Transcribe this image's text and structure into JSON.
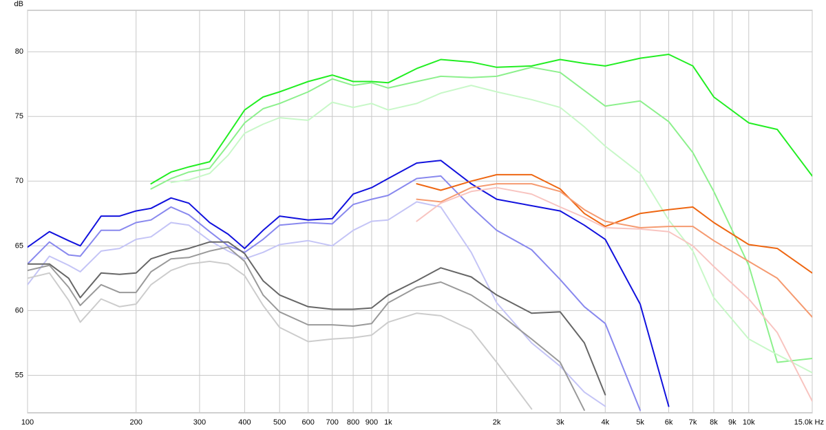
{
  "chart_data": {
    "type": "line",
    "y_label": "dB",
    "xscale": "log",
    "grid": true,
    "xlim": [
      100,
      15000
    ],
    "ylim": [
      52.1,
      83.2
    ],
    "xticks": [
      100,
      200,
      300,
      400,
      500,
      600,
      700,
      800,
      900,
      {
        "value": 1000,
        "label": "1k"
      },
      {
        "value": 2000,
        "label": "2k"
      },
      {
        "value": 3000,
        "label": "3k"
      },
      {
        "value": 4000,
        "label": "4k"
      },
      {
        "value": 5000,
        "label": "5k"
      },
      {
        "value": 6000,
        "label": "6k"
      },
      {
        "value": 7000,
        "label": "7k"
      },
      {
        "value": 8000,
        "label": "8k"
      },
      {
        "value": 9000,
        "label": "9k"
      },
      {
        "value": 10000,
        "label": "10k"
      },
      {
        "value": 15000,
        "label": "15.0k Hz"
      }
    ],
    "yticks": [
      55,
      60,
      65,
      70,
      75,
      80
    ],
    "x": [
      100,
      115,
      130,
      140,
      160,
      180,
      200,
      220,
      250,
      280,
      320,
      360,
      400,
      450,
      500,
      600,
      700,
      800,
      900,
      1000,
      1200,
      1400,
      1700,
      2000,
      2500,
      3000,
      3500,
      4000,
      5000,
      6000,
      7000,
      8000,
      10000,
      12000,
      15000
    ],
    "series": [
      {
        "color": "#22ee22",
        "values": [
          null,
          null,
          null,
          null,
          null,
          null,
          null,
          69.8,
          70.7,
          71.1,
          71.5,
          73.6,
          75.5,
          76.5,
          76.9,
          77.7,
          78.2,
          77.7,
          77.7,
          77.6,
          78.7,
          79.4,
          79.2,
          78.8,
          78.9,
          79.4,
          79.1,
          78.9,
          79.5,
          79.8,
          78.9,
          76.5,
          74.5,
          74.0,
          70.4
        ]
      },
      {
        "color": "#8cf08c",
        "values": [
          null,
          null,
          null,
          null,
          null,
          null,
          null,
          69.4,
          70.2,
          70.7,
          71.0,
          72.8,
          74.5,
          75.6,
          76.0,
          76.9,
          77.9,
          77.4,
          77.6,
          77.2,
          77.7,
          78.1,
          78.0,
          78.1,
          78.8,
          78.4,
          77.0,
          75.8,
          76.2,
          74.6,
          72.2,
          69.2,
          63.5,
          56.0,
          56.3
        ]
      },
      {
        "color": "#c8f8c8",
        "values": [
          null,
          null,
          null,
          null,
          null,
          null,
          null,
          null,
          69.9,
          70.1,
          70.6,
          72.0,
          73.7,
          74.4,
          74.9,
          74.7,
          76.1,
          75.7,
          76.0,
          75.5,
          76.0,
          76.8,
          77.4,
          76.9,
          76.3,
          75.7,
          74.2,
          72.7,
          70.6,
          67.0,
          64.6,
          61.0,
          57.8,
          56.6,
          55.2
        ]
      },
      {
        "color": "#1111dd",
        "values": [
          64.9,
          66.1,
          65.4,
          65.0,
          67.3,
          67.3,
          67.7,
          67.9,
          68.7,
          68.3,
          66.8,
          65.9,
          64.8,
          66.2,
          67.3,
          67.0,
          67.1,
          69.0,
          69.5,
          70.2,
          71.4,
          71.6,
          69.8,
          68.6,
          68.1,
          67.7,
          66.6,
          65.5,
          60.5,
          52.6,
          null,
          null,
          null,
          null,
          null
        ]
      },
      {
        "color": "#8888ee",
        "values": [
          63.6,
          65.3,
          64.3,
          64.2,
          66.2,
          66.2,
          66.8,
          67.0,
          68.0,
          67.4,
          66.1,
          65.0,
          64.5,
          65.5,
          66.6,
          66.8,
          66.7,
          68.2,
          68.6,
          68.9,
          70.2,
          70.4,
          68.0,
          66.2,
          64.7,
          62.4,
          60.3,
          59.0,
          52.3,
          null,
          null,
          null,
          null,
          null,
          null
        ]
      },
      {
        "color": "#c4c4f6",
        "values": [
          62.0,
          64.2,
          63.5,
          63.0,
          64.6,
          64.8,
          65.5,
          65.7,
          66.8,
          66.6,
          65.4,
          64.6,
          64.0,
          64.5,
          65.1,
          65.4,
          65.0,
          66.2,
          66.9,
          67.0,
          68.4,
          68.0,
          64.5,
          60.6,
          57.5,
          55.7,
          53.7,
          52.6,
          null,
          null,
          null,
          null,
          null,
          null,
          null
        ]
      },
      {
        "color": "#666666",
        "values": [
          63.6,
          63.6,
          62.5,
          61.0,
          62.9,
          62.8,
          62.9,
          64.0,
          64.5,
          64.8,
          65.3,
          65.3,
          64.4,
          62.3,
          61.2,
          60.3,
          60.1,
          60.1,
          60.2,
          61.2,
          62.3,
          63.3,
          62.6,
          61.2,
          59.8,
          59.9,
          57.5,
          53.5,
          null,
          null,
          null,
          null,
          null,
          null,
          null
        ]
      },
      {
        "color": "#999999",
        "values": [
          63.1,
          63.5,
          61.8,
          60.4,
          62.0,
          61.4,
          61.4,
          63.0,
          64.0,
          64.1,
          64.6,
          64.9,
          63.8,
          61.2,
          59.9,
          58.9,
          58.9,
          58.8,
          59.0,
          60.6,
          61.8,
          62.2,
          61.2,
          59.9,
          57.8,
          56.0,
          52.3,
          null,
          null,
          null,
          null,
          null,
          null,
          null,
          null
        ]
      },
      {
        "color": "#cccccc",
        "values": [
          62.5,
          62.9,
          60.8,
          59.1,
          60.9,
          60.3,
          60.5,
          62.0,
          63.1,
          63.6,
          63.8,
          63.6,
          62.7,
          60.4,
          58.7,
          57.6,
          57.8,
          57.9,
          58.1,
          59.1,
          59.8,
          59.6,
          58.5,
          56.0,
          52.4,
          null,
          null,
          null,
          null,
          null,
          null,
          null,
          null,
          null,
          null
        ]
      },
      {
        "color": "#ee6611",
        "values": [
          null,
          null,
          null,
          null,
          null,
          null,
          null,
          null,
          null,
          null,
          null,
          null,
          null,
          null,
          null,
          null,
          null,
          null,
          null,
          null,
          69.8,
          69.3,
          70.0,
          70.5,
          70.5,
          69.4,
          67.5,
          66.5,
          67.5,
          67.8,
          68.0,
          66.8,
          65.1,
          64.8,
          62.9
        ]
      },
      {
        "color": "#f59a70",
        "values": [
          null,
          null,
          null,
          null,
          null,
          null,
          null,
          null,
          null,
          null,
          null,
          null,
          null,
          null,
          null,
          null,
          null,
          null,
          null,
          null,
          68.6,
          68.4,
          69.5,
          69.8,
          69.8,
          69.2,
          67.8,
          66.9,
          66.4,
          66.5,
          66.5,
          65.4,
          63.8,
          62.5,
          59.5
        ]
      },
      {
        "color": "#f8c4c0",
        "values": [
          null,
          null,
          null,
          null,
          null,
          null,
          null,
          null,
          null,
          null,
          null,
          null,
          null,
          null,
          null,
          null,
          null,
          null,
          null,
          null,
          66.9,
          68.3,
          69.2,
          69.5,
          69.0,
          68.0,
          67.2,
          66.4,
          66.3,
          66.1,
          65.0,
          63.4,
          60.9,
          58.3,
          53.0
        ]
      }
    ]
  }
}
